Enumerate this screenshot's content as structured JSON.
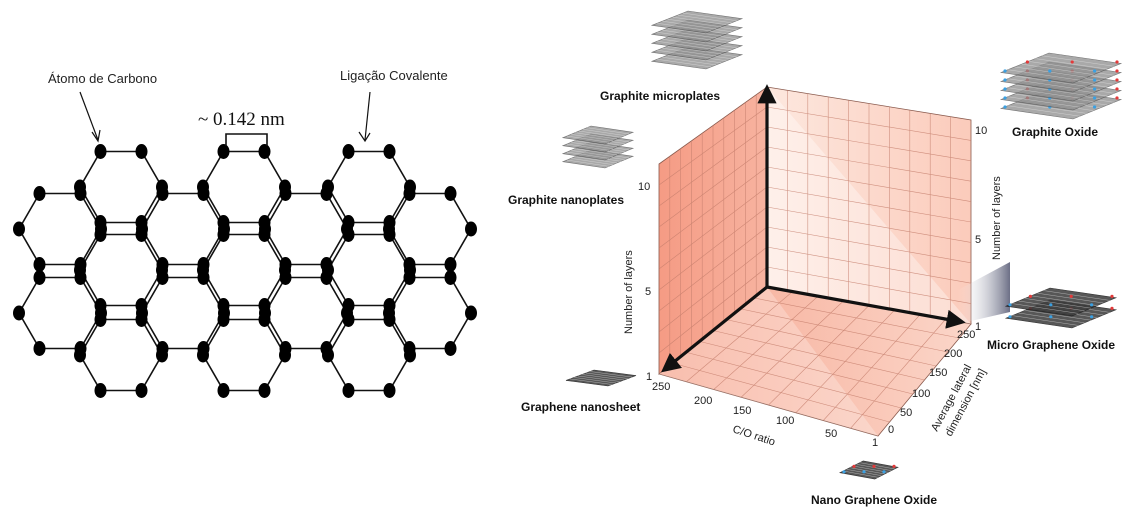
{
  "lattice": {
    "carbon_label": "Átomo de Carbono",
    "bond_label": "Ligação Covalente",
    "bond_length": "~ 0.142 nm"
  },
  "plot3d": {
    "y_axis_label": "Number of layers",
    "y_ticks": [
      "1",
      "5",
      "10"
    ],
    "x_axis_label": "C/O ratio",
    "x_ticks": [
      "250",
      "200",
      "150",
      "100",
      "50",
      "1"
    ],
    "z_axis_label_line1": "Average lateral",
    "z_axis_label_line2": "dimension [nm]",
    "z_ticks": [
      "0",
      "50",
      "100",
      "150",
      "200",
      "250"
    ],
    "right_axis_label": "Number of layers",
    "right_ticks": [
      "1",
      "5",
      "10"
    ],
    "materials": {
      "graphite_microplates": "Graphite microplates",
      "graphite_nanoplates": "Graphite nanoplates",
      "graphene_nanosheet": "Graphene nanosheet",
      "graphite_oxide": "Graphite Oxide",
      "micro_graphene_oxide": "Micro Graphene Oxide",
      "nano_graphene_oxide": "Nano Graphene Oxide"
    },
    "colors": {
      "panel": "#f7a58f",
      "panel_light": "#fde3da",
      "grid": "#c9826f",
      "axis": "#111111"
    }
  }
}
